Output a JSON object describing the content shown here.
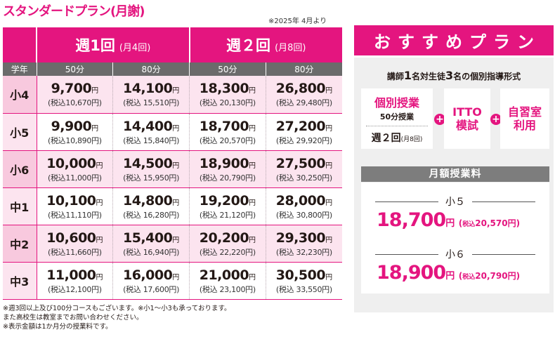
{
  "plan_title": "スタンダードプラン(月謝)",
  "effective_note": "※2025年 4月より",
  "table": {
    "grade_header": "学年",
    "yen": "円",
    "frequencies": [
      {
        "label": "週1回",
        "sub": "(月4回)"
      },
      {
        "label": "週２回",
        "sub": "(月8回)"
      }
    ],
    "durations": [
      "50分",
      "80分",
      "50分",
      "80分"
    ],
    "rows": [
      {
        "grade": "小4",
        "prices": [
          {
            "price": "9,700",
            "tax": "(税込10,670円)"
          },
          {
            "price": "14,100",
            "tax": "(税込 15,510円)"
          },
          {
            "price": "18,300",
            "tax": "(税込 20,130円)"
          },
          {
            "price": "26,800",
            "tax": "(税込 29,480円)"
          }
        ]
      },
      {
        "grade": "小5",
        "prices": [
          {
            "price": "9,900",
            "tax": "(税込10,890円)"
          },
          {
            "price": "14,400",
            "tax": "(税込 15,840円)"
          },
          {
            "price": "18,700",
            "tax": "(税込 20,570円)"
          },
          {
            "price": "27,200",
            "tax": "(税込 29,920円)"
          }
        ]
      },
      {
        "grade": "小6",
        "prices": [
          {
            "price": "10,000",
            "tax": "(税込11,000円)"
          },
          {
            "price": "14,500",
            "tax": "(税込 15,950円)"
          },
          {
            "price": "18,900",
            "tax": "(税込 20,790円)"
          },
          {
            "price": "27,500",
            "tax": "(税込 30,250円)"
          }
        ]
      },
      {
        "grade": "中1",
        "prices": [
          {
            "price": "10,100",
            "tax": "(税込11,110円)"
          },
          {
            "price": "14,800",
            "tax": "(税込 16,280円)"
          },
          {
            "price": "19,200",
            "tax": "(税込 21,120円)"
          },
          {
            "price": "28,000",
            "tax": "(税込 30,800円)"
          }
        ]
      },
      {
        "grade": "中2",
        "prices": [
          {
            "price": "10,600",
            "tax": "(税込11,660円)"
          },
          {
            "price": "15,400",
            "tax": "(税込 16,940円)"
          },
          {
            "price": "20,200",
            "tax": "(税込 22,220円)"
          },
          {
            "price": "29,300",
            "tax": "(税込 32,230円)"
          }
        ]
      },
      {
        "grade": "中3",
        "prices": [
          {
            "price": "11,000",
            "tax": "(税込12,100円)"
          },
          {
            "price": "16,000",
            "tax": "(税込 17,600円)"
          },
          {
            "price": "21,000",
            "tax": "(税込 23,100円)"
          },
          {
            "price": "30,500",
            "tax": "(税込 33,550円)"
          }
        ]
      }
    ]
  },
  "footnotes": [
    "※週3回以上及び100分コースもございます。※小1〜小3も承っております。",
    "また高校生は教室までお問い合わせください。",
    "※表示金額は1か月分の授業料です。"
  ],
  "recommended": {
    "title": "おすすめプラン",
    "desc": {
      "p1": "講師",
      "n1": "1",
      "p2": "名対生徒",
      "n2": "3",
      "p3": "名の個別指導形式"
    },
    "individual": {
      "title": "個別授業",
      "duration": "50分授業",
      "freq": "週２回",
      "freq_sub": "(月8回)"
    },
    "plus": "+",
    "itto": {
      "line1": "ITTO",
      "line2": "模試"
    },
    "self_study": {
      "line1": "自習室",
      "line2": "利用"
    },
    "fee_header": "月額授業料",
    "fees": [
      {
        "grade": "小５",
        "price": "18,700",
        "yen": "円",
        "tax_open": "(",
        "tax_label": "税込",
        "tax_value": "20,570円)"
      },
      {
        "grade": "小６",
        "price": "18,900",
        "yen": "円",
        "tax_open": "(",
        "tax_label": "税込",
        "tax_value": "20,790円)"
      }
    ]
  },
  "colors": {
    "accent": "#e4157f",
    "header_gray": "#6b6b6b",
    "row_pink": "#fce4ef",
    "panel_gray": "#efefef"
  }
}
